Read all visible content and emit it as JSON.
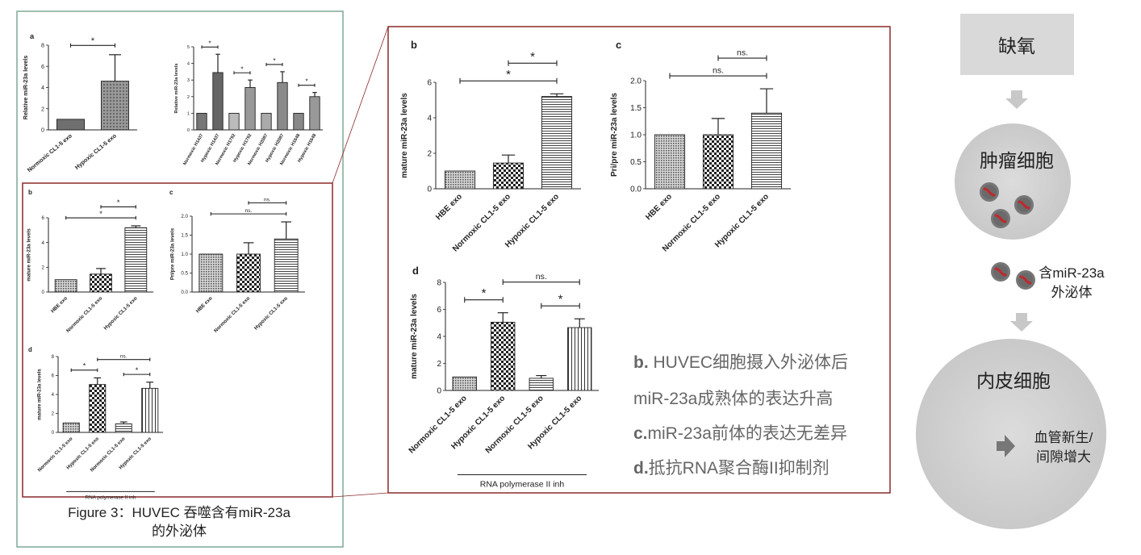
{
  "figure_caption_line1": "Figure 3：HUVEC 吞噬含有miR-23a",
  "figure_caption_line2": "的外泌体",
  "notes": [
    {
      "bold": "b.",
      "text": " HUVEC细胞摄入外泌体后"
    },
    {
      "bold": "",
      "text": "miR-23a成熟体的表达升高"
    },
    {
      "bold": "c.",
      "text": "miR-23a前体的表达无差异"
    },
    {
      "bold": "d.",
      "text": "抵抗RNA聚合酶II抑制剂"
    }
  ],
  "flow": {
    "hypoxia": "缺氧",
    "tumor_cell": "肿瘤细胞",
    "exosome_label_line1": "含miR-23a",
    "exosome_label_line2": "外泌体",
    "endothelial_cell": "内皮细胞",
    "outcome_line1": "血管新生/",
    "outcome_line2": "间隙增大"
  },
  "colors": {
    "panel_border_green": "#7ea896",
    "panel_border_red": "#8b2a2a",
    "flow_box": "#d9d9d9",
    "cell": "#d4d4d4",
    "exosome_red": "#c0282d"
  },
  "chart_data": [
    {
      "id": "a1",
      "type": "bar",
      "panel_letter": "a",
      "ylabel": "Relative miR-23a levels",
      "categories": [
        "Normoxic CL1-5 exo",
        "Hypoxic CL1-5 exo"
      ],
      "values": [
        1.0,
        4.6
      ],
      "errors": [
        0,
        2.5
      ],
      "ylim": [
        0,
        8
      ],
      "yticks": [
        "0",
        "2",
        "4",
        "6",
        "8"
      ],
      "significance": [
        {
          "from": 0,
          "to": 1,
          "label": "*"
        }
      ]
    },
    {
      "id": "a2",
      "type": "bar",
      "panel_letter": "",
      "ylabel": "Relative miR-23a levels",
      "categories": [
        "Normoxic H1437",
        "Hypoxic H1437",
        "Normoxic H1792",
        "Hypoxic H1792",
        "Normoxic H2087",
        "Hypoxic H2087",
        "Normoxic H1648",
        "Hypoxic H1648"
      ],
      "values": [
        1.0,
        3.45,
        1.0,
        2.55,
        1.0,
        2.85,
        1.0,
        2.0
      ],
      "errors": [
        0,
        1.1,
        0,
        0.45,
        0,
        0.65,
        0,
        0.25
      ],
      "ylim": [
        0,
        5
      ],
      "yticks": [
        "0",
        "1",
        "2",
        "3",
        "4",
        "5"
      ],
      "significance": [
        {
          "from": 0,
          "to": 1,
          "label": "*"
        },
        {
          "from": 2,
          "to": 3,
          "label": "*"
        },
        {
          "from": 4,
          "to": 5,
          "label": "*"
        },
        {
          "from": 6,
          "to": 7,
          "label": "*"
        }
      ]
    },
    {
      "id": "b",
      "type": "bar",
      "panel_letter": "b",
      "ylabel": "mature miR-23a levels",
      "categories": [
        "HBE exo",
        "Normoxic CL1-5 exo",
        "Hypoxic CL1-5 exo"
      ],
      "values": [
        1.0,
        1.45,
        5.2
      ],
      "errors": [
        0,
        0.45,
        0.15
      ],
      "ylim": [
        0,
        6
      ],
      "yticks": [
        "0",
        "2",
        "4",
        "6"
      ],
      "significance": [
        {
          "from": 0,
          "to": 2,
          "label": "*"
        },
        {
          "from": 1,
          "to": 2,
          "label": "*"
        }
      ]
    },
    {
      "id": "c",
      "type": "bar",
      "panel_letter": "c",
      "ylabel": "Pri/pre miR-23a levels",
      "categories": [
        "HBE exo",
        "Normoxic CL1-5 exo",
        "Hypoxic CL1-5 exo"
      ],
      "values": [
        1.0,
        1.0,
        1.4
      ],
      "errors": [
        0,
        0.3,
        0.45
      ],
      "ylim": [
        0,
        2.0
      ],
      "yticks": [
        "0.0",
        "0.5",
        "1.0",
        "1.5",
        "2.0"
      ],
      "significance": [
        {
          "from": 0,
          "to": 2,
          "label": "ns."
        },
        {
          "from": 1,
          "to": 2,
          "label": "ns."
        }
      ]
    },
    {
      "id": "d",
      "type": "bar",
      "panel_letter": "d",
      "ylabel": "mature miR-23a levels",
      "categories": [
        "Normoxic CL1-5 exo",
        "Hypoxic CL1-5 exo",
        "Normoxic CL1-5 exo",
        "Hypoxic CL1-5 exo"
      ],
      "values": [
        1.0,
        5.05,
        0.9,
        4.65
      ],
      "errors": [
        0,
        0.7,
        0.2,
        0.65
      ],
      "ylim": [
        0,
        8
      ],
      "yticks": [
        "0",
        "2",
        "4",
        "6",
        "8"
      ],
      "group_label": "RNA polymerase II inh",
      "significance": [
        {
          "from": 0,
          "to": 1,
          "label": "*"
        },
        {
          "from": 2,
          "to": 3,
          "label": "*"
        },
        {
          "from": 1,
          "to": 3,
          "label": "ns."
        }
      ]
    }
  ]
}
